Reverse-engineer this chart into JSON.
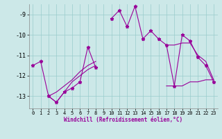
{
  "xlabel": "Windchill (Refroidissement éolien,°C)",
  "bg_color": "#cce8e8",
  "grid_color": "#99cccc",
  "line_color": "#990099",
  "x_data": [
    0,
    1,
    2,
    3,
    4,
    5,
    6,
    7,
    8,
    9,
    10,
    11,
    12,
    13,
    14,
    15,
    16,
    17,
    18,
    19,
    20,
    21,
    22,
    23
  ],
  "y_main": [
    -11.5,
    -11.3,
    -13.0,
    -13.3,
    -12.8,
    -12.6,
    -12.3,
    -10.6,
    -11.6,
    null,
    -9.2,
    -8.8,
    -9.6,
    -8.6,
    -10.2,
    -9.8,
    -10.2,
    -10.5,
    -12.5,
    -10.0,
    -10.3,
    -11.1,
    -11.5,
    -12.3
  ],
  "y_lower": [
    -11.5,
    null,
    -13.0,
    -13.3,
    -12.8,
    -12.3,
    -12.0,
    -11.7,
    -11.5,
    null,
    null,
    null,
    null,
    null,
    null,
    null,
    null,
    -12.5,
    -12.5,
    -12.5,
    -12.3,
    -12.3,
    -12.2,
    -12.2
  ],
  "y_upper": [
    -11.5,
    null,
    -13.0,
    -12.8,
    -12.5,
    -12.2,
    -11.8,
    -11.5,
    -11.3,
    null,
    null,
    null,
    null,
    null,
    null,
    null,
    null,
    -10.5,
    -10.5,
    -10.4,
    -10.4,
    -11.0,
    -11.3,
    -12.2
  ],
  "ylim": [
    -13.6,
    -8.5
  ],
  "xlim": [
    -0.5,
    23.5
  ],
  "yticks": [
    -9,
    -10,
    -11,
    -12,
    -13
  ],
  "xticks": [
    0,
    1,
    2,
    3,
    4,
    5,
    6,
    7,
    8,
    9,
    10,
    11,
    12,
    13,
    14,
    15,
    16,
    17,
    18,
    19,
    20,
    21,
    22,
    23
  ],
  "xtick_labels": [
    "0",
    "1",
    "2",
    "3",
    "4",
    "5",
    "6",
    "7",
    "8",
    "9",
    "10",
    "11",
    "12",
    "13",
    "14",
    "15",
    "16",
    "17",
    "18",
    "19",
    "20",
    "21",
    "22",
    "23"
  ]
}
